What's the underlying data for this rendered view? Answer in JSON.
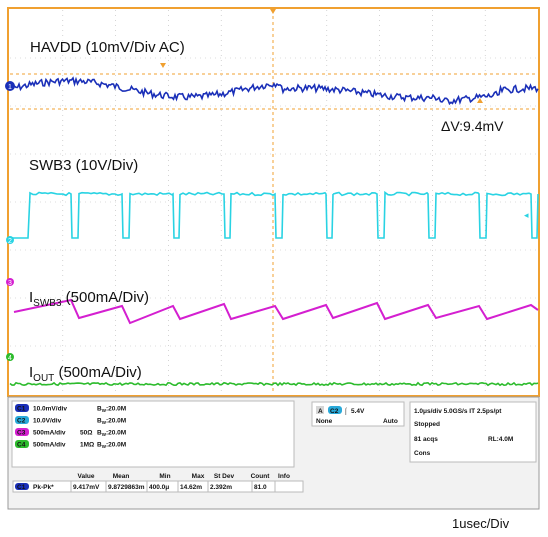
{
  "scope": {
    "channels": [
      {
        "name": "HAVDD",
        "text": "HAVDD (10mV/Div  AC)",
        "color": "#1a2fb8"
      },
      {
        "name": "SWB3",
        "text": "SWB3 (10V/Div)",
        "color": "#29d3e3"
      },
      {
        "name_main": "I",
        "name_sub": "SWB3",
        "text": " (500mA/Div)",
        "color": "#d41fd0"
      },
      {
        "name_main": "I",
        "name_sub": "OUT",
        "text": " (500mA/Div)",
        "color": "#2dbb2d"
      }
    ],
    "delta_label": "ΔV:9.4mV",
    "timebase_label": "1usec/Div",
    "channel_markers": [
      "1",
      "2",
      "3",
      "4"
    ],
    "setup": [
      {
        "ch": "C1",
        "scale": "10.0mV/div",
        "coupling": "",
        "bw": "B",
        "bw_sub": "W",
        "bw_val": ":20.0M"
      },
      {
        "ch": "C2",
        "scale": "10.0V/div",
        "coupling": "",
        "bw": "B",
        "bw_sub": "W",
        "bw_val": ":20.0M"
      },
      {
        "ch": "C3",
        "scale": "500mA/div",
        "coupling": "50Ω",
        "bw": "B",
        "bw_sub": "W",
        "bw_val": ":20.0M"
      },
      {
        "ch": "C4",
        "scale": "500mA/div",
        "coupling": "1MΩ",
        "bw": "B",
        "bw_sub": "W",
        "bw_val": ":20.0M"
      }
    ],
    "trigger": {
      "channel": "C2",
      "level": "5.4V",
      "mode": "None",
      "sweep": "Auto"
    },
    "acquisition": {
      "line1": "1.0μs/div  5.0GS/s  IT  2.5ps/pt",
      "line2": "Stopped",
      "line3": "81 acqs",
      "rl": "RL:4.0M",
      "line4": "Cons"
    },
    "measurements": {
      "headers": [
        "Value",
        "Mean",
        "Min",
        "Max",
        "St Dev",
        "Count",
        "Info"
      ],
      "row": {
        "ch": "C1",
        "name": "Pk-Pk*",
        "values": [
          "9.417mV",
          "9.8729863m",
          "400.0μ",
          "14.62m",
          "2.392m",
          "81.0",
          ""
        ]
      }
    }
  }
}
